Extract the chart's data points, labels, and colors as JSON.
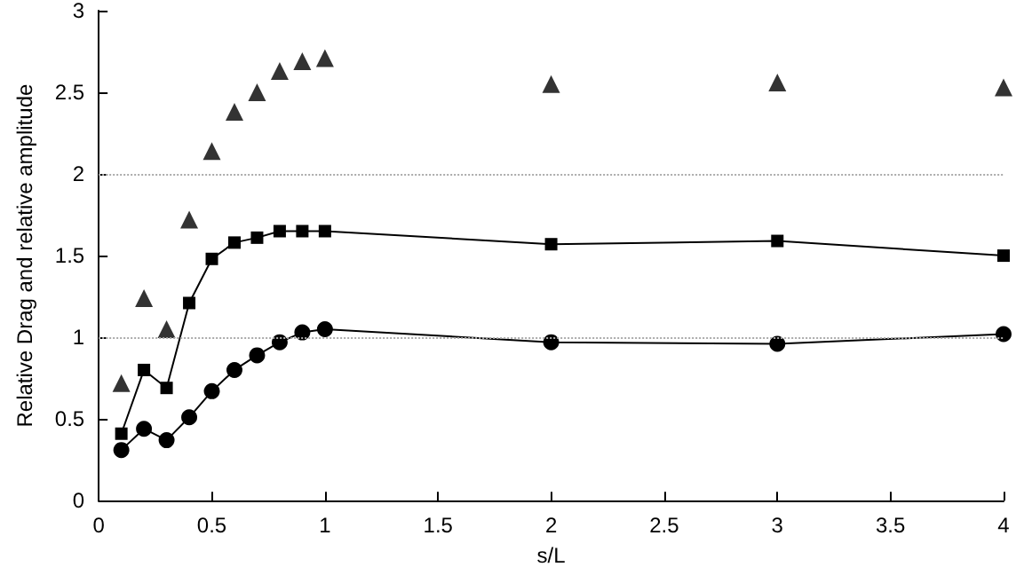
{
  "chart_data": {
    "type": "line",
    "xlabel": "s/L",
    "ylabel": "Relative Drag and relative amplitude",
    "x": [
      0.1,
      0.2,
      0.3,
      0.4,
      0.5,
      0.6,
      0.7,
      0.8,
      0.9,
      1.0,
      2,
      3,
      4
    ],
    "series": [
      {
        "type": "scatter",
        "marker": "triangle",
        "color": "#000000",
        "values": [
          0.72,
          1.24,
          1.05,
          1.72,
          2.14,
          2.38,
          2.5,
          2.63,
          2.69,
          2.71,
          2.55,
          2.56,
          2.53
        ]
      },
      {
        "marker": "square",
        "line_style": "solid",
        "color": "#000000",
        "values": [
          0.41,
          0.8,
          0.69,
          1.21,
          1.48,
          1.58,
          1.61,
          1.65,
          1.65,
          1.65,
          1.57,
          1.59,
          1.5
        ]
      },
      {
        "marker": "circle",
        "line_style": "solid",
        "color": "#000000",
        "values": [
          0.31,
          0.44,
          0.37,
          0.51,
          0.67,
          0.8,
          0.89,
          0.97,
          1.03,
          1.05,
          0.97,
          0.96,
          1.02
        ]
      }
    ],
    "xlim": [
      0,
      4
    ],
    "xticks": [
      0,
      0.5,
      1,
      1.5,
      2,
      2.5,
      3,
      3.5,
      4
    ],
    "ylim": [
      0,
      3
    ],
    "yticks": [
      0,
      0.5,
      1,
      1.5,
      2,
      2.5,
      3
    ],
    "ref_lines": [
      {
        "axis": "y",
        "value": 1,
        "color": "#aaaaaa",
        "line_style": "dotted"
      },
      {
        "axis": "y",
        "value": 2,
        "color": "#aaaaaa",
        "line_style": "dotted"
      }
    ],
    "grid": false
  }
}
